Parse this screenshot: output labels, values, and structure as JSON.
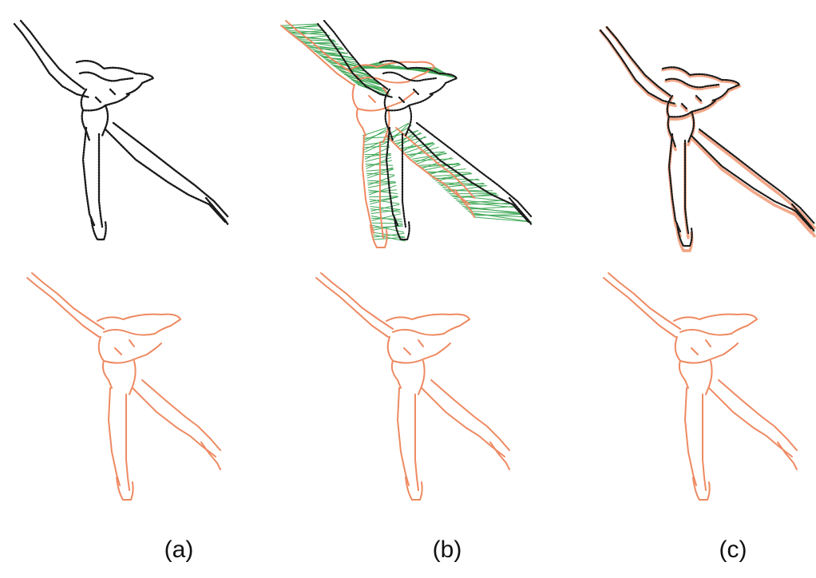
{
  "figure": {
    "captions": [
      "(a)",
      "(b)",
      "(c)"
    ],
    "colors": {
      "background": "#ffffff",
      "source_shape": "#1a1a1a",
      "target_shape": "#ee8a62",
      "correspondence_lines": "#1f9a3a"
    },
    "panels": [
      {
        "column": "a",
        "row": "top",
        "shape": "source",
        "overlay": "none"
      },
      {
        "column": "a",
        "row": "bottom",
        "shape": "target",
        "overlay": "none"
      },
      {
        "column": "b",
        "row": "top",
        "shape": "source",
        "overlay": "target-with-correspondences"
      },
      {
        "column": "b",
        "row": "bottom",
        "shape": "target",
        "overlay": "none"
      },
      {
        "column": "c",
        "row": "top",
        "shape": "source",
        "overlay": "aligned-target"
      },
      {
        "column": "c",
        "row": "bottom",
        "shape": "target",
        "overlay": "none"
      }
    ]
  }
}
